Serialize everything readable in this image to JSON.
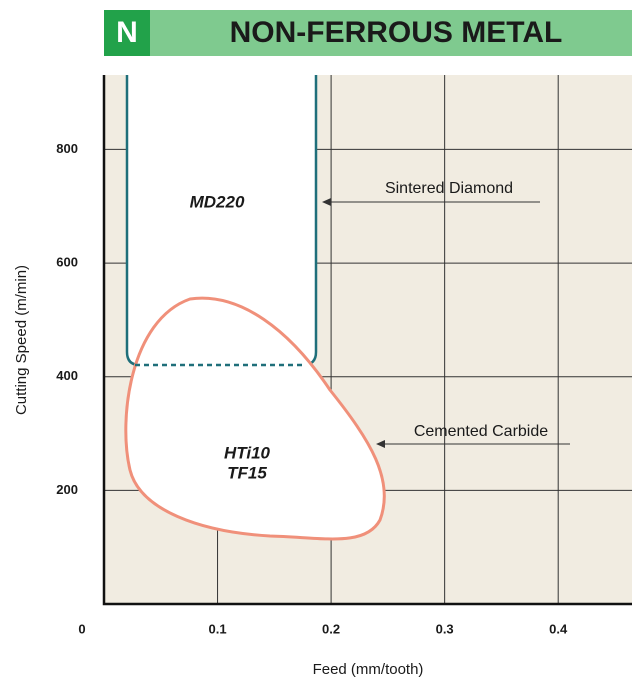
{
  "chart_data": {
    "type": "region",
    "title": "NON-FERROUS METAL",
    "badge": "N",
    "x_label": "Feed (mm/tooth)",
    "y_label": "Cutting Speed (m/min)",
    "xlim": [
      0,
      0.465
    ],
    "ylim": [
      0,
      931
    ],
    "xticks": [
      0,
      0.1,
      0.2,
      0.3,
      0.4
    ],
    "yticks": [
      200,
      400,
      600,
      800
    ],
    "grid": true,
    "regions": [
      {
        "name": "Sintered Diamond",
        "grades": [
          "MD220"
        ],
        "color": "#1f6f7a"
      },
      {
        "name": "Cemented Carbide",
        "grades": [
          "HTi10",
          "TF15"
        ],
        "color": "#f0907a"
      }
    ]
  }
}
